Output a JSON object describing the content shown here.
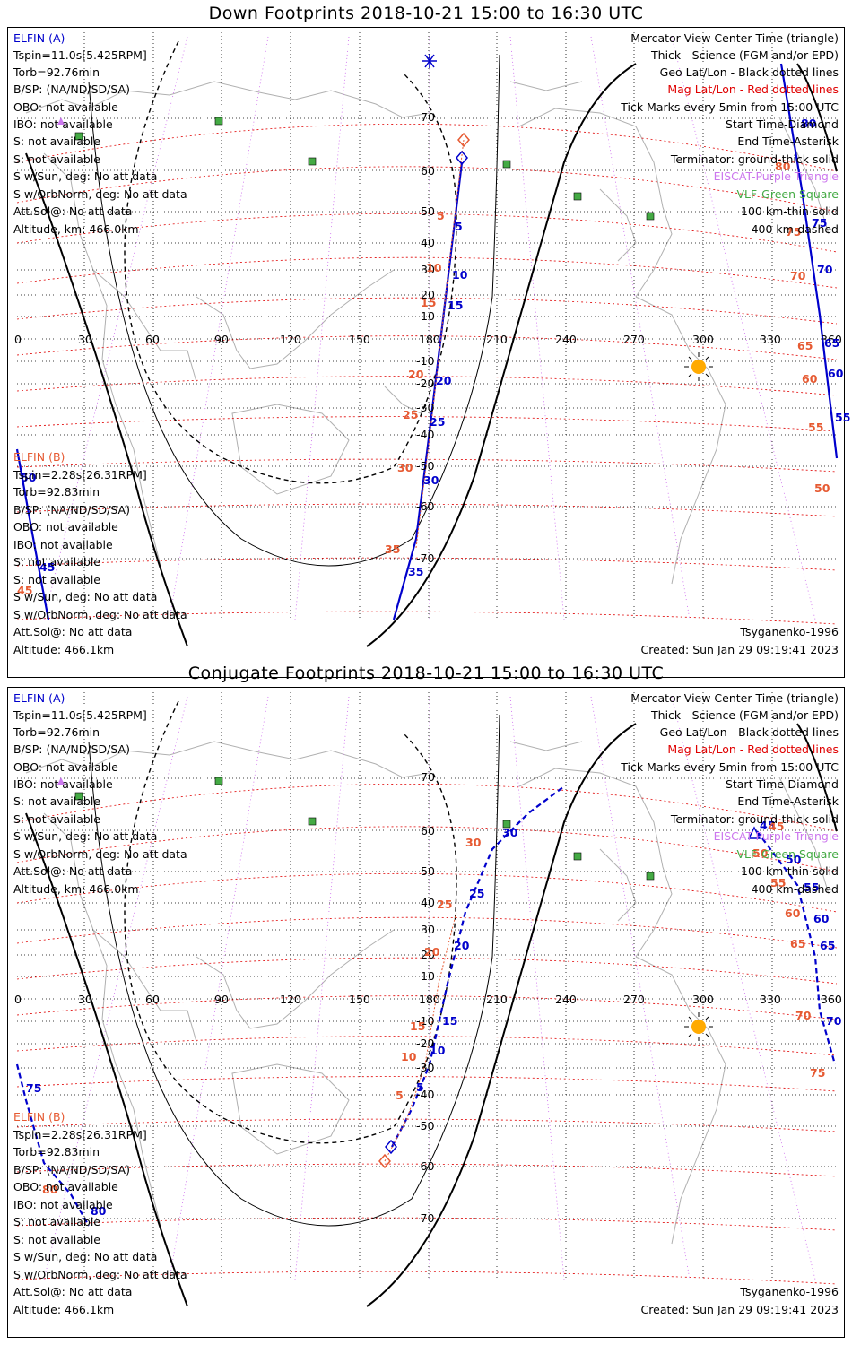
{
  "panels": [
    {
      "title": "Down Footprints 2018-10-21 15:00 to 16:30 UTC",
      "elfin_a": [
        "ELFIN (A)",
        "Tspin=11.0s[5.425RPM]",
        "Torb=92.76min",
        "B/SP: (NA/ND/SD/SA)",
        "OBO: not available",
        "IBO: not available",
        "S: not available",
        "S: not available",
        "S w/Sun, deg: No att data",
        "S w/OrbNorm, deg: No att data",
        "Att.Sol@: No att data",
        "Altitude, km: 466.0km"
      ],
      "elfin_b": [
        "ELFIN (B)",
        "Tspin=2.28s[26.31RPM]",
        "Torb=92.83min",
        "B/SP: (NA/ND/SD/SA)",
        "OBO: not available",
        "IBO: not available",
        "S: not available",
        "S: not available",
        "S w/Sun, deg: No att data",
        "S w/OrbNorm, deg: No att data",
        "Att.Sol@: No att data",
        "Altitude: 466.1km"
      ],
      "legend": [
        "Mercator View Center Time (triangle)",
        "Thick - Science (FGM and/or EPD)",
        "Geo Lat/Lon - Black dotted lines",
        "Mag Lat/Lon - Red dotted lines",
        "Tick Marks every 5min from 15:00 UTC",
        "Start Time-Diamond",
        "End Time-Asterisk",
        "Terminator: ground-thick solid",
        "EISCAT-Purple Triangle",
        "VLF-Green Square",
        "100 km-thin solid",
        "400 km-dashed"
      ],
      "model": "Tsyganenko-1996",
      "created": "Created: Sun Jan 29 09:19:41 2023",
      "lon_labels": [
        "0",
        "30",
        "60",
        "90",
        "120",
        "150",
        "180",
        "210",
        "240",
        "270",
        "300",
        "330",
        "360"
      ],
      "lat_labels": [
        "70",
        "60",
        "50",
        "40",
        "30",
        "20",
        "10",
        "-10",
        "-20",
        "-30",
        "-40",
        "-50",
        "-60",
        "-70"
      ],
      "track_a_ticks": [
        "5",
        "10",
        "15",
        "20",
        "25",
        "30",
        "35",
        "45",
        "50",
        "55",
        "60",
        "65",
        "70",
        "75",
        "80"
      ],
      "track_b_ticks": [
        "5",
        "10",
        "15",
        "20",
        "25",
        "30",
        "35",
        "45",
        "50",
        "55",
        "60",
        "65",
        "70",
        "75",
        "80"
      ]
    },
    {
      "title": "Conjugate Footprints 2018-10-21 15:00 to 16:30 UTC",
      "elfin_a": [
        "ELFIN (A)",
        "Tspin=11.0s[5.425RPM]",
        "Torb=92.76min",
        "B/SP: (NA/ND/SD/SA)",
        "OBO: not available",
        "IBO: not available",
        "S: not available",
        "S: not available",
        "S w/Sun, deg: No att data",
        "S w/OrbNorm, deg: No att data",
        "Att.Sol@: No att data",
        "Altitude, km: 466.0km"
      ],
      "elfin_b": [
        "ELFIN (B)",
        "Tspin=2.28s[26.31RPM]",
        "Torb=92.83min",
        "B/SP: (NA/ND/SD/SA)",
        "OBO: not available",
        "IBO: not available",
        "S: not available",
        "S: not available",
        "S w/Sun, deg: No att data",
        "S w/OrbNorm, deg: No att data",
        "Att.Sol@: No att data",
        "Altitude: 466.1km"
      ],
      "legend": [
        "Mercator View Center Time (triangle)",
        "Thick - Science (FGM and/or EPD)",
        "Geo Lat/Lon - Black dotted lines",
        "Mag Lat/Lon - Red dotted lines",
        "Tick Marks every 5min from 15:00 UTC",
        "Start Time-Diamond",
        "End Time-Asterisk",
        "Terminator: ground-thick solid",
        "EISCAT-Purple Triangle",
        "VLF-Green Square",
        "100 km-thin solid",
        "400 km-dashed"
      ],
      "model": "Tsyganenko-1996",
      "created": "Created: Sun Jan 29 09:19:41 2023",
      "lon_labels": [
        "0",
        "30",
        "60",
        "90",
        "120",
        "150",
        "180",
        "210",
        "240",
        "270",
        "300",
        "330",
        "360"
      ],
      "lat_labels": [
        "70",
        "60",
        "50",
        "40",
        "30",
        "20",
        "10",
        "-10",
        "-20",
        "-30",
        "-40",
        "-50",
        "-60",
        "-70"
      ],
      "track_a_ticks": [
        "5",
        "10",
        "15",
        "20",
        "25",
        "30",
        "45",
        "50",
        "55",
        "60",
        "65",
        "70",
        "75",
        "80"
      ],
      "track_b_ticks": [
        "5",
        "10",
        "15",
        "20",
        "25",
        "30",
        "45",
        "50",
        "55",
        "60",
        "65",
        "70",
        "75",
        "80"
      ]
    }
  ],
  "colors": {
    "elfin_a": "#0000cc",
    "elfin_b": "#e65a32",
    "mag_grid": "#e00000",
    "geo_grid": "#000000",
    "eiscat": "#cc77ee",
    "vlf": "#44aa44",
    "sun": "#ffaa00"
  }
}
